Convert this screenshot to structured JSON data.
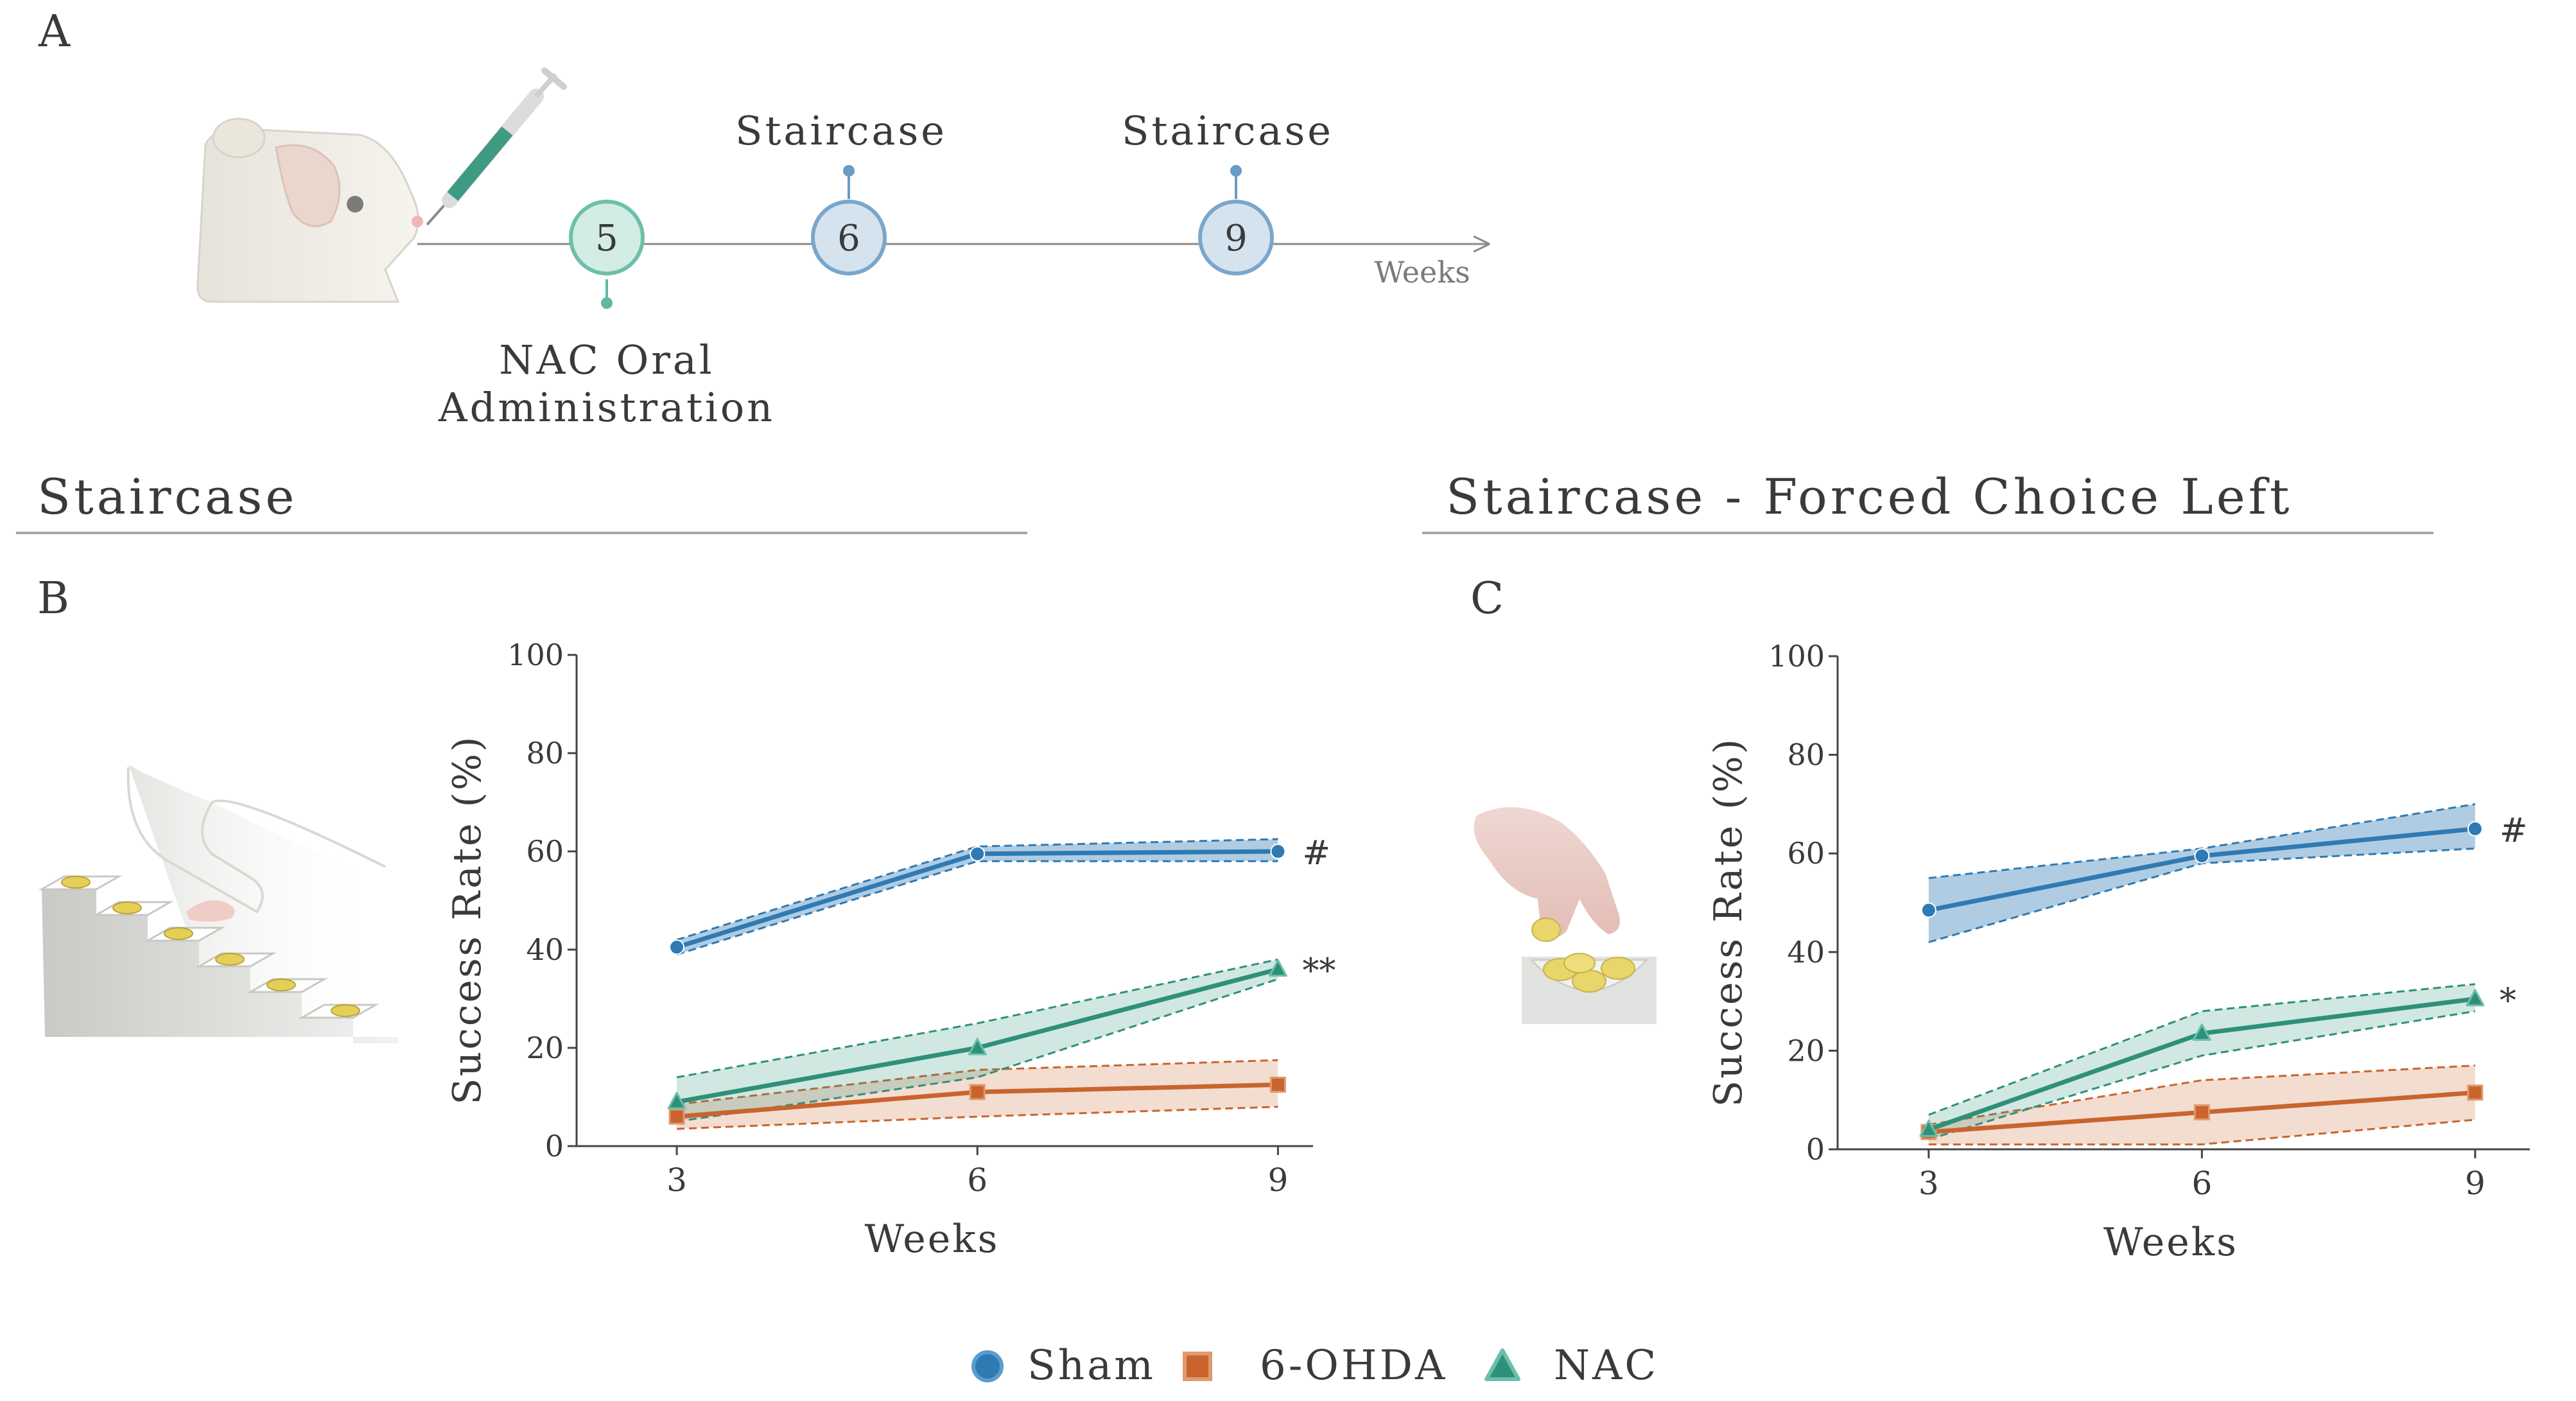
{
  "panel_a": {
    "letter": "A",
    "injection_label": "NAC Oral",
    "injection_label2": "Administration",
    "staircase_label_1": "Staircase",
    "staircase_label_2": "Staircase",
    "week_5": "5",
    "week_6": "6",
    "week_9": "9",
    "axis_label": "Weeks"
  },
  "section_b": {
    "title": "Staircase",
    "letter": "B"
  },
  "section_c": {
    "title": "Staircase - Forced Choice Left",
    "letter": "C"
  },
  "legend": {
    "items": [
      {
        "label": "Sham",
        "color": "#2f7ab3",
        "marker": "circle"
      },
      {
        "label": "6-OHDA",
        "color": "#c9642e",
        "marker": "square"
      },
      {
        "label": "NAC",
        "color": "#2f9079",
        "marker": "triangle"
      }
    ]
  },
  "colors": {
    "sham": "#2f7ab3",
    "ohda": "#c9642e",
    "nac": "#2f9079",
    "axis": "#444444",
    "text": "#3a3a3a"
  },
  "chart_data": [
    {
      "id": "B",
      "type": "line",
      "title": "",
      "xlabel": "Weeks",
      "ylabel": "Success Rate (%)",
      "x": [
        3,
        6,
        9
      ],
      "xticks": [
        "3",
        "6",
        "9"
      ],
      "yticks": [
        "0",
        "20",
        "40",
        "60",
        "80",
        "100"
      ],
      "ylim": [
        0,
        100
      ],
      "grid": false,
      "series": [
        {
          "name": "Sham",
          "key": "sham",
          "values": [
            40.5,
            59.5,
            60
          ],
          "lower": [
            39,
            58,
            58
          ],
          "upper": [
            42,
            61,
            62.5
          ],
          "annotation": "#"
        },
        {
          "name": "6-OHDA",
          "key": "ohda",
          "values": [
            6,
            11,
            12.5
          ],
          "lower": [
            3.5,
            6,
            8
          ],
          "upper": [
            8.5,
            15.5,
            17.5
          ],
          "annotation": ""
        },
        {
          "name": "NAC",
          "key": "nac",
          "values": [
            9,
            20,
            36
          ],
          "lower": [
            5,
            14,
            34
          ],
          "upper": [
            14,
            25,
            38
          ],
          "annotation": "**"
        }
      ]
    },
    {
      "id": "C",
      "type": "line",
      "title": "",
      "xlabel": "Weeks",
      "ylabel": "Success Rate (%)",
      "x": [
        3,
        6,
        9
      ],
      "xticks": [
        "3",
        "6",
        "9"
      ],
      "yticks": [
        "0",
        "20",
        "40",
        "60",
        "80",
        "100"
      ],
      "ylim": [
        0,
        100
      ],
      "grid": false,
      "series": [
        {
          "name": "Sham",
          "key": "sham",
          "values": [
            48.5,
            59.5,
            65
          ],
          "lower": [
            42,
            58,
            61
          ],
          "upper": [
            55,
            61,
            70
          ],
          "annotation": "#"
        },
        {
          "name": "6-OHDA",
          "key": "ohda",
          "values": [
            3.5,
            7.5,
            11.5
          ],
          "lower": [
            1,
            1,
            6
          ],
          "upper": [
            5,
            14,
            17
          ],
          "annotation": ""
        },
        {
          "name": "NAC",
          "key": "nac",
          "values": [
            4,
            23.5,
            30.5
          ],
          "lower": [
            2,
            19,
            28
          ],
          "upper": [
            7,
            28,
            33.5
          ],
          "annotation": "*"
        }
      ]
    }
  ]
}
